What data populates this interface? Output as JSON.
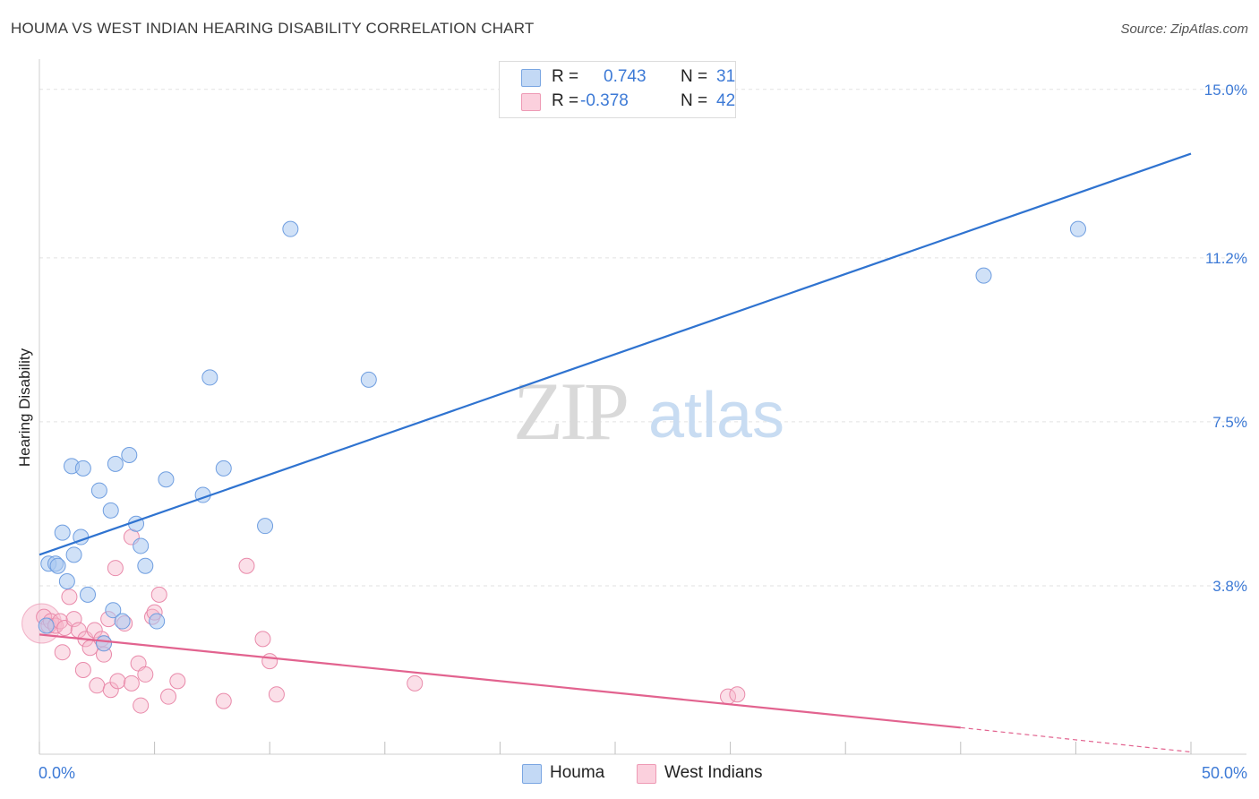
{
  "header": {
    "title": "HOUMA VS WEST INDIAN HEARING DISABILITY CORRELATION CHART",
    "source": "Source: ZipAtlas.com"
  },
  "watermark": {
    "zip": "ZIP",
    "atlas": "atlas"
  },
  "legend": {
    "houma": {
      "r_label": "R =",
      "r_value": "0.743",
      "n_label": "N =",
      "n_value": "31"
    },
    "west_indians": {
      "r_label": "R =",
      "r_value": "-0.378",
      "n_label": "N =",
      "n_value": "42"
    }
  },
  "bottom_legend": {
    "houma": "Houma",
    "west_indians": "West Indians"
  },
  "colors": {
    "houma_fill": "#a9c8f0",
    "houma_stroke": "#6f9ee0",
    "houma_line": "#2f73d0",
    "wi_fill": "#f6b8cc",
    "wi_stroke": "#e98aaa",
    "wi_line": "#e2638f",
    "tick_label": "#3d7ad6",
    "grid": "#e2e2e2"
  },
  "chart_data": {
    "type": "scatter",
    "title": "HOUMA VS WEST INDIAN HEARING DISABILITY CORRELATION CHART",
    "xlabel": "",
    "ylabel": "Hearing Disability",
    "xlim": [
      0,
      50
    ],
    "ylim": [
      0,
      15.4
    ],
    "x_tick_labels": [
      "0.0%",
      "50.0%"
    ],
    "y_ticks": [
      3.8,
      7.5,
      11.2,
      15.0
    ],
    "y_tick_labels": [
      "3.8%",
      "7.5%",
      "11.2%",
      "15.0%"
    ],
    "series": [
      {
        "name": "Houma",
        "points": [
          [
            0.3,
            2.9
          ],
          [
            0.4,
            4.3
          ],
          [
            0.7,
            4.3
          ],
          [
            0.8,
            4.25
          ],
          [
            1.0,
            5.0
          ],
          [
            1.2,
            3.9
          ],
          [
            1.4,
            6.5
          ],
          [
            1.5,
            4.5
          ],
          [
            1.8,
            4.9
          ],
          [
            1.9,
            6.45
          ],
          [
            2.1,
            3.6
          ],
          [
            2.6,
            5.95
          ],
          [
            2.8,
            2.5
          ],
          [
            3.1,
            5.5
          ],
          [
            3.2,
            3.25
          ],
          [
            3.3,
            6.55
          ],
          [
            3.6,
            3.0
          ],
          [
            3.9,
            6.75
          ],
          [
            4.2,
            5.2
          ],
          [
            4.4,
            4.7
          ],
          [
            4.6,
            4.25
          ],
          [
            5.1,
            3.0
          ],
          [
            5.5,
            6.2
          ],
          [
            7.1,
            5.85
          ],
          [
            7.4,
            8.5
          ],
          [
            8.0,
            6.45
          ],
          [
            9.8,
            5.15
          ],
          [
            10.9,
            11.85
          ],
          [
            14.3,
            8.45
          ],
          [
            41.0,
            10.8
          ],
          [
            45.1,
            11.85
          ]
        ],
        "trend": {
          "x0": 0,
          "y0": 4.5,
          "x1": 50,
          "y1": 13.55
        }
      },
      {
        "name": "West Indians",
        "points": [
          [
            0.2,
            3.1
          ],
          [
            0.4,
            2.9
          ],
          [
            0.5,
            3.0
          ],
          [
            0.7,
            2.9
          ],
          [
            0.9,
            3.0
          ],
          [
            1.0,
            2.3
          ],
          [
            1.1,
            2.85
          ],
          [
            1.3,
            3.55
          ],
          [
            1.5,
            3.05
          ],
          [
            1.7,
            2.8
          ],
          [
            1.9,
            1.9
          ],
          [
            2.0,
            2.6
          ],
          [
            2.2,
            2.4
          ],
          [
            2.4,
            2.8
          ],
          [
            2.5,
            1.55
          ],
          [
            2.7,
            2.6
          ],
          [
            2.8,
            2.5
          ],
          [
            2.8,
            2.25
          ],
          [
            3.0,
            3.05
          ],
          [
            3.1,
            1.45
          ],
          [
            3.3,
            4.2
          ],
          [
            3.4,
            1.65
          ],
          [
            3.7,
            2.95
          ],
          [
            4.0,
            4.9
          ],
          [
            4.0,
            1.6
          ],
          [
            4.3,
            2.05
          ],
          [
            4.4,
            1.1
          ],
          [
            4.6,
            1.8
          ],
          [
            4.9,
            3.1
          ],
          [
            5.0,
            3.2
          ],
          [
            5.2,
            3.6
          ],
          [
            5.6,
            1.3
          ],
          [
            6.0,
            1.65
          ],
          [
            8.0,
            1.2
          ],
          [
            9.0,
            4.25
          ],
          [
            9.7,
            2.6
          ],
          [
            10.0,
            2.1
          ],
          [
            10.3,
            1.35
          ],
          [
            16.3,
            1.6
          ],
          [
            29.9,
            1.3
          ],
          [
            30.3,
            1.35
          ]
        ],
        "big_point": [
          0.1,
          2.95
        ],
        "trend": {
          "x0": 0,
          "y0": 2.7,
          "x1": 40,
          "y1": 0.6,
          "dash_x1": 50,
          "dash_y1": 0.05
        }
      }
    ],
    "legend_position": "top-center",
    "grid": true
  }
}
